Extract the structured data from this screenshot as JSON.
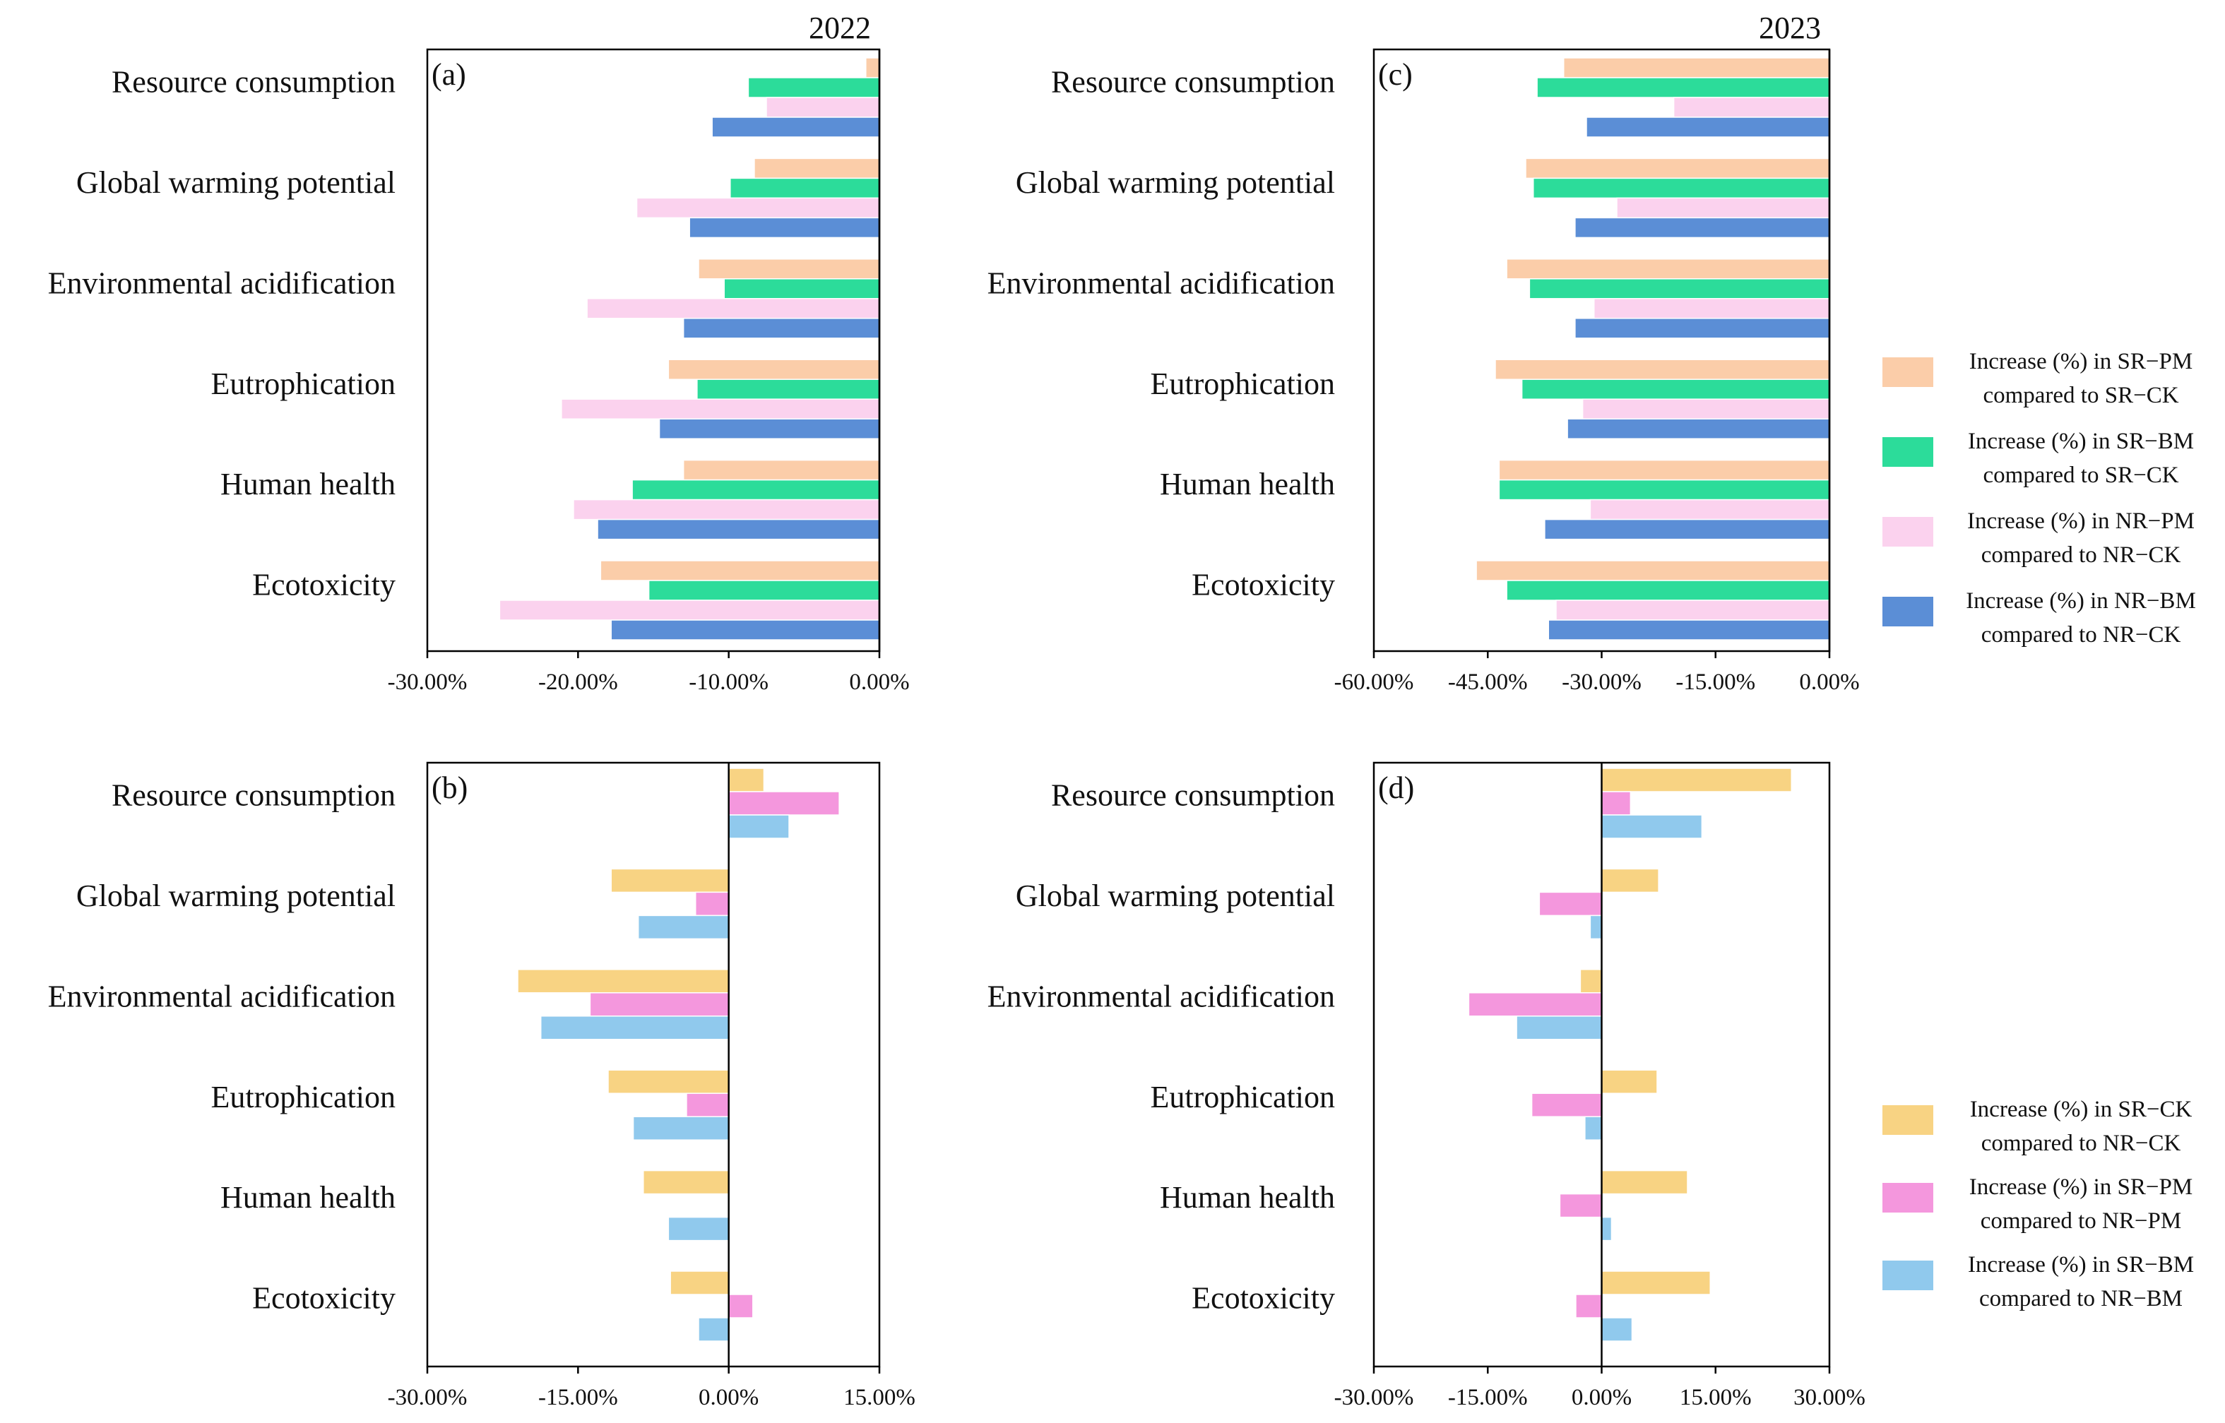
{
  "categories": [
    "Resource consumption",
    "Global warming potential",
    "Environmental acidification",
    "Eutrophication",
    "Human health",
    "Ecotoxicity"
  ],
  "chart_data": [
    {
      "id": "a",
      "panel_label": "(a)",
      "year": "2022",
      "type": "bar",
      "orientation": "horizontal",
      "xlim": [
        -30,
        0
      ],
      "ticks": [
        -30,
        -20,
        -10,
        0
      ],
      "tick_labels": [
        "-30.00%",
        "-20.00%",
        "-10.00%",
        "0.00%"
      ],
      "series": [
        {
          "name": "Increase (%) in SR−PM compared to SR−CK",
          "color": "#FBCDA9",
          "values": [
            -0.9,
            -8.3,
            -12.0,
            -14.0,
            -13.0,
            -18.5
          ]
        },
        {
          "name": "Increase (%) in SR−BM compared to SR−CK",
          "color": "#2CDC9A",
          "values": [
            -8.7,
            -9.9,
            -10.3,
            -12.1,
            -16.4,
            -15.3
          ]
        },
        {
          "name": "Increase (%) in NR−PM compared to NR−CK",
          "color": "#FBD2EE",
          "values": [
            -7.5,
            -16.1,
            -19.4,
            -21.1,
            -20.3,
            -25.2
          ]
        },
        {
          "name": "Increase (%) in NR−BM compared to NR−CK",
          "color": "#5B8ED6",
          "values": [
            -11.1,
            -12.6,
            -13.0,
            -14.6,
            -18.7,
            -17.8
          ]
        }
      ]
    },
    {
      "id": "c",
      "panel_label": "(c)",
      "year": "2023",
      "type": "bar",
      "orientation": "horizontal",
      "xlim": [
        -60,
        0
      ],
      "ticks": [
        -60,
        -45,
        -30,
        -15,
        0
      ],
      "tick_labels": [
        "-60.00%",
        "-45.00%",
        "-30.00%",
        "-15.00%",
        "0.00%"
      ],
      "series": [
        {
          "name": "Increase (%) in SR−PM compared to SR−CK",
          "color": "#FBCDA9",
          "values": [
            -35.0,
            -40.0,
            -42.5,
            -44.0,
            -43.5,
            -46.5
          ]
        },
        {
          "name": "Increase (%) in SR−BM compared to SR−CK",
          "color": "#2CDC9A",
          "values": [
            -38.5,
            -39.0,
            -39.5,
            -40.5,
            -43.5,
            -42.5
          ]
        },
        {
          "name": "Increase (%) in NR−PM compared to NR−CK",
          "color": "#FBD2EE",
          "values": [
            -20.5,
            -28.0,
            -31.0,
            -32.5,
            -31.5,
            -36.0
          ]
        },
        {
          "name": "Increase (%) in NR−BM compared to NR−CK",
          "color": "#5B8ED6",
          "values": [
            -32.0,
            -33.5,
            -33.5,
            -34.5,
            -37.5,
            -37.0
          ]
        }
      ]
    },
    {
      "id": "b",
      "panel_label": "(b)",
      "type": "bar",
      "orientation": "horizontal",
      "xlim": [
        -30,
        15
      ],
      "ticks": [
        -30,
        -15,
        0,
        15
      ],
      "tick_labels": [
        "-30.00%",
        "-15.00%",
        "0.00%",
        "15.00%"
      ],
      "series": [
        {
          "name": "Increase (%) in SR−CK compared to NR−CK",
          "color": "#F8D383",
          "values": [
            3.5,
            -11.7,
            -21.0,
            -12.0,
            -8.5,
            -5.8
          ]
        },
        {
          "name": "Increase (%) in SR−PM compared to NR−PM",
          "color": "#F497DD",
          "values": [
            11.0,
            -3.3,
            -13.8,
            -4.2,
            0.0,
            2.4
          ]
        },
        {
          "name": "Increase (%) in SR−BM compared to NR−BM",
          "color": "#90C9ED",
          "values": [
            6.0,
            -9.0,
            -18.7,
            -9.5,
            -6.0,
            -3.0
          ]
        }
      ]
    },
    {
      "id": "d",
      "panel_label": "(d)",
      "type": "bar",
      "orientation": "horizontal",
      "xlim": [
        -30,
        30
      ],
      "ticks": [
        -30,
        -15,
        0,
        15,
        30
      ],
      "tick_labels": [
        "-30.00%",
        "-15.00%",
        "0.00%",
        "15.00%",
        "30.00%"
      ],
      "series": [
        {
          "name": "Increase (%) in SR−CK compared to NR−CK",
          "color": "#F8D383",
          "values": [
            25.0,
            7.5,
            -2.8,
            7.3,
            11.3,
            14.3
          ]
        },
        {
          "name": "Increase (%) in SR−PM compared to NR−PM",
          "color": "#F497DD",
          "values": [
            3.8,
            -8.2,
            -17.5,
            -9.2,
            -5.5,
            -3.4
          ]
        },
        {
          "name": "Increase (%) in SR−BM compared to NR−BM",
          "color": "#90C9ED",
          "values": [
            13.2,
            -1.5,
            -11.2,
            -2.2,
            1.3,
            4.0
          ]
        }
      ]
    }
  ],
  "legend_top": [
    {
      "line1": "Increase (%) in SR−PM",
      "line2": "compared to SR−CK",
      "color": "#FBCDA9"
    },
    {
      "line1": "Increase (%) in SR−BM",
      "line2": "compared to SR−CK",
      "color": "#2CDC9A"
    },
    {
      "line1": "Increase (%) in NR−PM",
      "line2": "compared to NR−CK",
      "color": "#FBD2EE"
    },
    {
      "line1": "Increase (%) in NR−BM",
      "line2": "compared to NR−CK",
      "color": "#5B8ED6"
    }
  ],
  "legend_bottom": [
    {
      "line1": "Increase (%) in SR−CK",
      "line2": "compared to NR−CK",
      "color": "#F8D383"
    },
    {
      "line1": "Increase (%) in SR−PM",
      "line2": "compared to NR−PM",
      "color": "#F497DD"
    },
    {
      "line1": "Increase (%) in SR−BM",
      "line2": "compared to NR−BM",
      "color": "#90C9ED"
    }
  ]
}
